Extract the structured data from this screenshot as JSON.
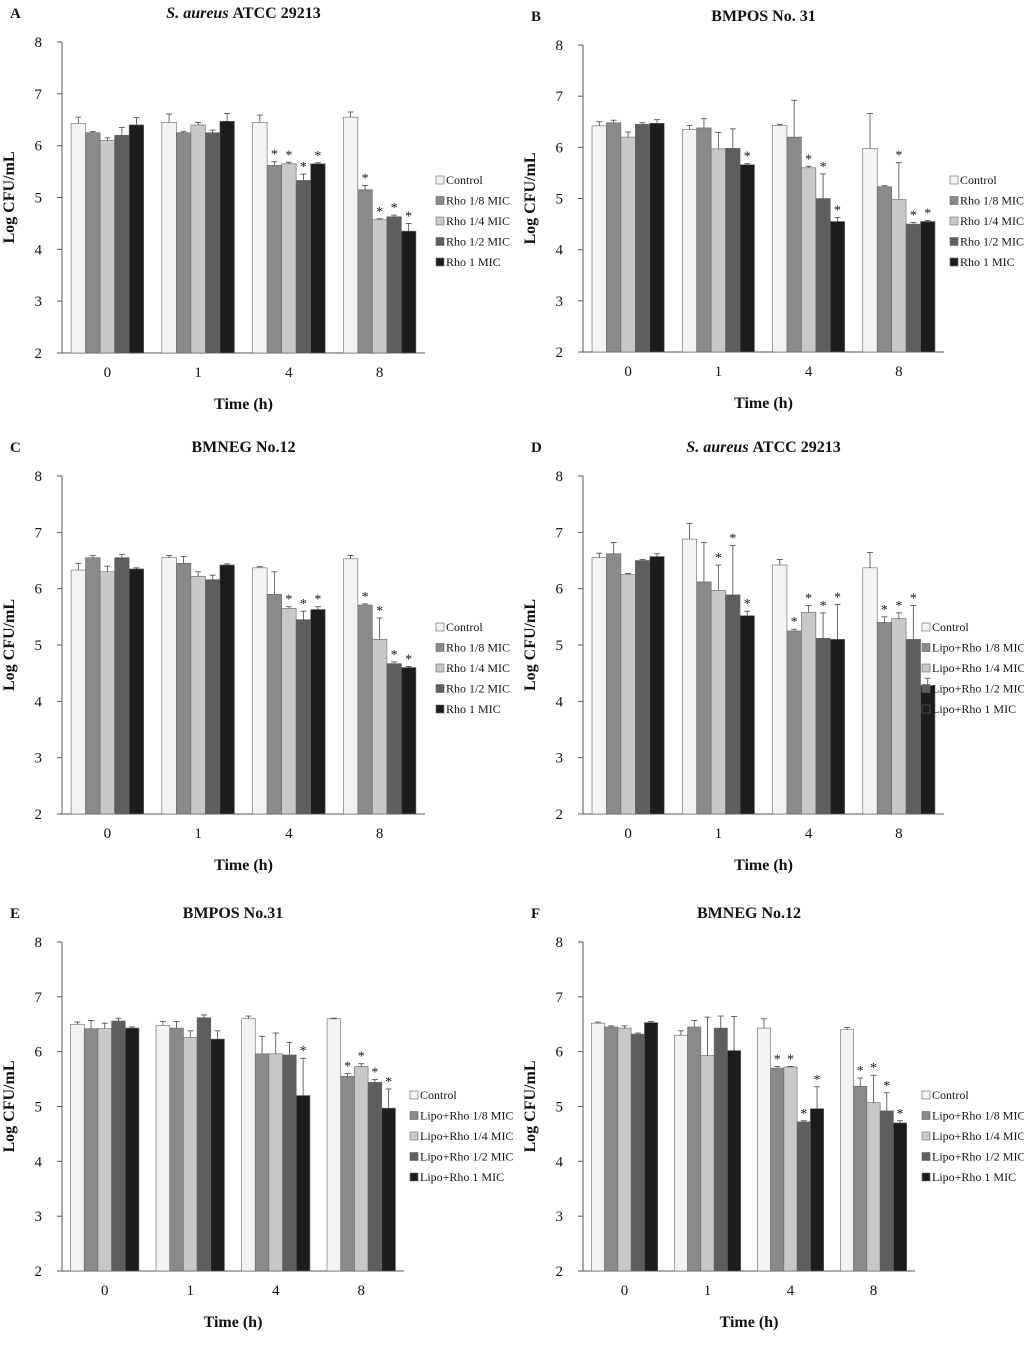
{
  "colors": {
    "series": [
      "#f3f3f3",
      "#8a8a8a",
      "#c8c8c8",
      "#5e5e5e",
      "#1c1c1c"
    ],
    "outline": "#666666",
    "axis": "#555555",
    "error": "#444444"
  },
  "chart_data": [
    {
      "type": "bar",
      "letter": "A",
      "title_italic": "S. aureus",
      "title": "ATCC 29213",
      "xlabel": "Time (h)",
      "ylabel": "Log CFU/mL",
      "ylim": [
        2,
        8
      ],
      "yticks": [
        "2",
        "3",
        "4",
        "5",
        "6",
        "7",
        "8"
      ],
      "categories": [
        "0",
        "1",
        "4",
        "8"
      ],
      "legend_position": "right",
      "series": [
        {
          "name": "Control",
          "values": [
            6.43,
            6.45,
            6.45,
            6.55
          ],
          "errors": [
            0.12,
            0.16,
            0.14,
            0.1
          ],
          "sig": [
            false,
            false,
            false,
            false
          ]
        },
        {
          "name": "Rho 1/8 MIC",
          "values": [
            6.25,
            6.25,
            5.62,
            5.15
          ],
          "errors": [
            0.02,
            0.02,
            0.07,
            0.08
          ],
          "sig": [
            false,
            false,
            true,
            true
          ]
        },
        {
          "name": "Rho 1/4 MIC",
          "values": [
            6.1,
            6.4,
            5.65,
            4.57
          ],
          "errors": [
            0.05,
            0.05,
            0.03,
            0.02
          ],
          "sig": [
            false,
            false,
            true,
            true
          ]
        },
        {
          "name": "Rho 1/2 MIC",
          "values": [
            6.2,
            6.25,
            5.33,
            4.63
          ],
          "errors": [
            0.15,
            0.05,
            0.12,
            0.03
          ],
          "sig": [
            false,
            false,
            true,
            true
          ]
        },
        {
          "name": "Rho 1 MIC",
          "values": [
            6.4,
            6.47,
            5.65,
            4.35
          ],
          "errors": [
            0.14,
            0.15,
            0.02,
            0.15
          ],
          "sig": [
            false,
            false,
            true,
            true
          ]
        }
      ]
    },
    {
      "type": "bar",
      "letter": "B",
      "title_italic": "",
      "title": "BMPOS No. 31",
      "xlabel": "Time (h)",
      "ylabel": "Log CFU/mL",
      "ylim": [
        2,
        8
      ],
      "yticks": [
        "2",
        "3",
        "4",
        "5",
        "6",
        "7",
        "8"
      ],
      "categories": [
        "0",
        "1",
        "4",
        "8"
      ],
      "legend_position": "right",
      "series": [
        {
          "name": "Control",
          "values": [
            6.42,
            6.35,
            6.43,
            5.98
          ],
          "errors": [
            0.08,
            0.08,
            0.02,
            0.68
          ],
          "sig": [
            false,
            false,
            false,
            false
          ]
        },
        {
          "name": "Rho 1/8 MIC",
          "values": [
            6.48,
            6.38,
            6.2,
            5.23
          ],
          "errors": [
            0.05,
            0.18,
            0.72,
            0.02
          ],
          "sig": [
            false,
            false,
            false,
            false
          ]
        },
        {
          "name": "Rho 1/4 MIC",
          "values": [
            6.2,
            5.97,
            5.6,
            4.98
          ],
          "errors": [
            0.1,
            0.32,
            0.03,
            0.72
          ],
          "sig": [
            false,
            false,
            true,
            true
          ]
        },
        {
          "name": "Rho 1/2 MIC",
          "values": [
            6.45,
            5.98,
            5.0,
            4.5
          ],
          "errors": [
            0.03,
            0.38,
            0.48,
            0.03
          ],
          "sig": [
            false,
            false,
            true,
            true
          ]
        },
        {
          "name": "Rho 1 MIC",
          "values": [
            6.47,
            5.66,
            4.55,
            4.55
          ],
          "errors": [
            0.07,
            0.02,
            0.08,
            0.02
          ],
          "sig": [
            false,
            true,
            true,
            true
          ]
        }
      ]
    },
    {
      "type": "bar",
      "letter": "C",
      "title_italic": "",
      "title": "BMNEG No.12",
      "xlabel": "Time (h)",
      "ylabel": "Log CFU/mL",
      "ylim": [
        2,
        8
      ],
      "yticks": [
        "2",
        "3",
        "4",
        "5",
        "6",
        "7",
        "8"
      ],
      "categories": [
        "0",
        "1",
        "4",
        "8"
      ],
      "legend_position": "right",
      "series": [
        {
          "name": "Control",
          "values": [
            6.33,
            6.55,
            6.37,
            6.53
          ],
          "errors": [
            0.12,
            0.04,
            0.02,
            0.06
          ],
          "sig": [
            false,
            false,
            false,
            false
          ]
        },
        {
          "name": "Rho 1/8 MIC",
          "values": [
            6.55,
            6.45,
            5.9,
            5.71
          ],
          "errors": [
            0.04,
            0.12,
            0.4,
            0.02
          ],
          "sig": [
            false,
            false,
            false,
            true
          ]
        },
        {
          "name": "Rho 1/4 MIC",
          "values": [
            6.3,
            6.22,
            5.65,
            5.1
          ],
          "errors": [
            0.1,
            0.08,
            0.03,
            0.38
          ],
          "sig": [
            false,
            false,
            true,
            true
          ]
        },
        {
          "name": "Rho 1/2 MIC",
          "values": [
            6.55,
            6.16,
            5.45,
            4.67
          ],
          "errors": [
            0.06,
            0.08,
            0.15,
            0.03
          ],
          "sig": [
            false,
            false,
            true,
            true
          ]
        },
        {
          "name": "Rho 1 MIC",
          "values": [
            6.35,
            6.42,
            5.63,
            4.6
          ],
          "errors": [
            0.02,
            0.02,
            0.05,
            0.02
          ],
          "sig": [
            false,
            false,
            true,
            true
          ]
        }
      ]
    },
    {
      "type": "bar",
      "letter": "D",
      "title_italic": "S. aureus",
      "title": "ATCC 29213",
      "xlabel": "Time (h)",
      "ylabel": "Log CFU/mL",
      "ylim": [
        2,
        8
      ],
      "yticks": [
        "2",
        "3",
        "4",
        "5",
        "6",
        "7",
        "8"
      ],
      "categories": [
        "0",
        "1",
        "4",
        "8"
      ],
      "legend_position": "right",
      "series": [
        {
          "name": "Control",
          "values": [
            6.55,
            6.88,
            6.42,
            6.37
          ],
          "errors": [
            0.08,
            0.28,
            0.1,
            0.27
          ],
          "sig": [
            false,
            false,
            false,
            false
          ]
        },
        {
          "name": "Lipo+Rho 1/8 MIC",
          "values": [
            6.62,
            6.12,
            5.25,
            5.4
          ],
          "errors": [
            0.2,
            0.7,
            0.03,
            0.1
          ],
          "sig": [
            false,
            false,
            true,
            true
          ]
        },
        {
          "name": "Lipo+Rho 1/4 MIC",
          "values": [
            6.25,
            5.97,
            5.58,
            5.47
          ],
          "errors": [
            0.02,
            0.45,
            0.12,
            0.1
          ],
          "sig": [
            false,
            true,
            true,
            true
          ]
        },
        {
          "name": "Lipo+Rho 1/2 MIC",
          "values": [
            6.5,
            5.89,
            5.12,
            5.1
          ],
          "errors": [
            0.02,
            0.88,
            0.45,
            0.6
          ],
          "sig": [
            false,
            true,
            true,
            true
          ]
        },
        {
          "name": "Lipo+Rho 1 MIC",
          "values": [
            6.57,
            5.52,
            5.1,
            4.28
          ],
          "errors": [
            0.05,
            0.08,
            0.62,
            0.13
          ],
          "sig": [
            false,
            true,
            true,
            true
          ]
        }
      ]
    },
    {
      "type": "bar",
      "letter": "E",
      "title_italic": "",
      "title": "BMPOS No.31",
      "xlabel": "Time (h)",
      "ylabel": "Log CFU/mL",
      "ylim": [
        2,
        8
      ],
      "yticks": [
        "2",
        "3",
        "4",
        "5",
        "6",
        "7",
        "8"
      ],
      "categories": [
        "0",
        "1",
        "4",
        "8"
      ],
      "legend_position": "right",
      "series": [
        {
          "name": "Control",
          "values": [
            6.5,
            6.48,
            6.6,
            6.6
          ],
          "errors": [
            0.04,
            0.07,
            0.05,
            0.01
          ],
          "sig": [
            false,
            false,
            false,
            false
          ]
        },
        {
          "name": "Lipo+Rho 1/8 MIC",
          "values": [
            6.42,
            6.43,
            5.96,
            5.55
          ],
          "errors": [
            0.15,
            0.12,
            0.32,
            0.05
          ],
          "sig": [
            false,
            false,
            false,
            true
          ]
        },
        {
          "name": "Lipo+Rho 1/4 MIC",
          "values": [
            6.42,
            6.26,
            5.96,
            5.73
          ],
          "errors": [
            0.1,
            0.12,
            0.38,
            0.05
          ],
          "sig": [
            false,
            false,
            false,
            true
          ]
        },
        {
          "name": "Lipo+Rho 1/2 MIC",
          "values": [
            6.56,
            6.62,
            5.94,
            5.44
          ],
          "errors": [
            0.05,
            0.05,
            0.23,
            0.05
          ],
          "sig": [
            false,
            false,
            false,
            true
          ]
        },
        {
          "name": "Lipo+Rho 1 MIC",
          "values": [
            6.43,
            6.23,
            5.2,
            4.97
          ],
          "errors": [
            0.02,
            0.15,
            0.68,
            0.35
          ],
          "sig": [
            false,
            false,
            true,
            true
          ]
        }
      ]
    },
    {
      "type": "bar",
      "letter": "F",
      "title_italic": "",
      "title": "BMNEG No.12",
      "xlabel": "Time (h)",
      "ylabel": "Log CFU/mL",
      "ylim": [
        2,
        8
      ],
      "yticks": [
        "2",
        "3",
        "4",
        "5",
        "6",
        "7",
        "8"
      ],
      "categories": [
        "0",
        "1",
        "4",
        "8"
      ],
      "legend_position": "right",
      "series": [
        {
          "name": "Control",
          "values": [
            6.52,
            6.3,
            6.43,
            6.4
          ],
          "errors": [
            0.02,
            0.08,
            0.17,
            0.04
          ],
          "sig": [
            false,
            false,
            false,
            false
          ]
        },
        {
          "name": "Lipo+Rho 1/8 MIC",
          "values": [
            6.45,
            6.45,
            5.7,
            5.37
          ],
          "errors": [
            0.02,
            0.12,
            0.03,
            0.15
          ],
          "sig": [
            false,
            false,
            true,
            true
          ]
        },
        {
          "name": "Lipo+Rho 1/4 MIC",
          "values": [
            6.43,
            5.93,
            5.72,
            5.07
          ],
          "errors": [
            0.04,
            0.7,
            0.01,
            0.5
          ],
          "sig": [
            false,
            false,
            true,
            true
          ]
        },
        {
          "name": "Lipo+Rho 1/2 MIC",
          "values": [
            6.32,
            6.43,
            4.72,
            4.92
          ],
          "errors": [
            0.02,
            0.22,
            0.02,
            0.33
          ],
          "sig": [
            false,
            false,
            true,
            true
          ]
        },
        {
          "name": "Lipo+Rho 1 MIC",
          "values": [
            6.53,
            6.02,
            4.96,
            4.7
          ],
          "errors": [
            0.02,
            0.62,
            0.4,
            0.04
          ],
          "sig": [
            false,
            false,
            true,
            true
          ]
        }
      ]
    }
  ]
}
